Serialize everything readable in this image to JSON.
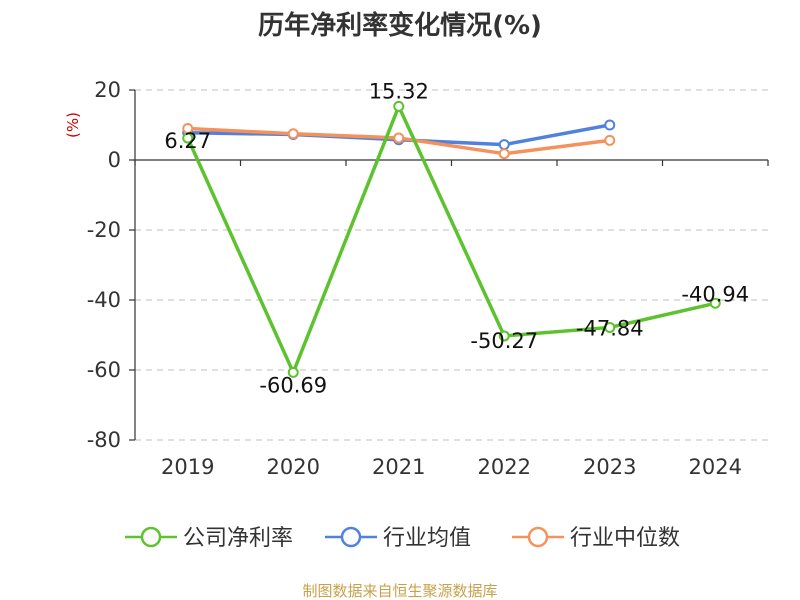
{
  "chart_data": {
    "type": "line",
    "title": "历年净利率变化情况(%)",
    "ylabel": "(%)",
    "xlabel": "",
    "categories": [
      "2019",
      "2020",
      "2021",
      "2022",
      "2023",
      "2024"
    ],
    "ylim": [
      -80,
      20
    ],
    "yticks": [
      20,
      0,
      -20,
      -40,
      -60,
      -80
    ],
    "grid": true,
    "legend_position": "bottom",
    "series": [
      {
        "name": "公司净利率",
        "color": "#5cc22e",
        "values": [
          6.27,
          -60.69,
          15.32,
          -50.27,
          -47.84,
          -40.94
        ],
        "labels": [
          "6.27",
          "-60.69",
          "15.32",
          "-50.27",
          "-47.84",
          "-40.94"
        ]
      },
      {
        "name": "行业均值",
        "color": "#4f81dd",
        "values": [
          7.8,
          7.3,
          5.8,
          4.4,
          10.0,
          null
        ]
      },
      {
        "name": "行业中位数",
        "color": "#f5915a",
        "values": [
          9.0,
          7.5,
          6.3,
          1.8,
          5.6,
          null
        ]
      }
    ]
  },
  "footer": {
    "source": "制图数据来自恒生聚源数据库"
  },
  "colors": {
    "ylabel": "#cc0000",
    "source": "#c8a24a",
    "axis": "#333333",
    "grid": "#cccccc"
  }
}
